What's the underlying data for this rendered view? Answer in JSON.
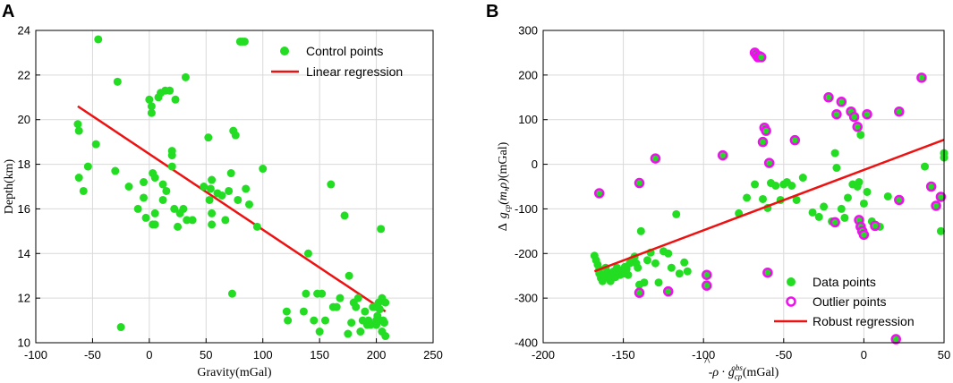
{
  "figure": {
    "panel_a_letter": "A",
    "panel_b_letter": "B"
  },
  "colors": {
    "data_point": "#22dd22",
    "outlier_ring": "#ee11ee",
    "regression_line": "#ee1111",
    "axis": "#000000"
  },
  "chart_data": [
    {
      "type": "scatter",
      "panel": "A",
      "title": "",
      "xlabel": "Gravity(mGal)",
      "ylabel": "Depth(km)",
      "xlim": [
        -100,
        250
      ],
      "ylim": [
        10,
        24
      ],
      "xticks": [
        -100,
        -50,
        0,
        50,
        100,
        150,
        200,
        250
      ],
      "yticks": [
        10,
        12,
        14,
        16,
        18,
        20,
        22,
        24
      ],
      "legend": {
        "position": "top-right",
        "entries": [
          "Control points",
          "Linear regression"
        ]
      },
      "series": [
        {
          "name": "Control points",
          "kind": "points",
          "points": [
            [
              -63,
              19.8
            ],
            [
              -62,
              19.5
            ],
            [
              -62,
              17.4
            ],
            [
              -58,
              16.8
            ],
            [
              -54,
              17.9
            ],
            [
              -47,
              18.9
            ],
            [
              -45,
              23.6
            ],
            [
              -30,
              17.7
            ],
            [
              -28,
              21.7
            ],
            [
              -25,
              10.7
            ],
            [
              -18,
              17.0
            ],
            [
              -10,
              16.0
            ],
            [
              -5,
              16.5
            ],
            [
              -5,
              17.2
            ],
            [
              -3,
              15.6
            ],
            [
              0,
              20.9
            ],
            [
              2,
              20.3
            ],
            [
              2,
              20.6
            ],
            [
              3,
              17.6
            ],
            [
              3,
              15.3
            ],
            [
              5,
              15.3
            ],
            [
              5,
              17.4
            ],
            [
              5,
              15.8
            ],
            [
              8,
              21.0
            ],
            [
              10,
              21.2
            ],
            [
              12,
              16.4
            ],
            [
              12,
              17.1
            ],
            [
              14,
              21.3
            ],
            [
              15,
              16.8
            ],
            [
              18,
              21.3
            ],
            [
              20,
              18.4
            ],
            [
              20,
              18.6
            ],
            [
              20,
              17.9
            ],
            [
              22,
              16.0
            ],
            [
              23,
              20.9
            ],
            [
              25,
              15.2
            ],
            [
              27,
              15.8
            ],
            [
              30,
              16.0
            ],
            [
              32,
              21.9
            ],
            [
              33,
              15.5
            ],
            [
              38,
              15.5
            ],
            [
              48,
              17.0
            ],
            [
              52,
              19.2
            ],
            [
              53,
              16.4
            ],
            [
              54,
              16.9
            ],
            [
              55,
              17.3
            ],
            [
              55,
              15.8
            ],
            [
              55,
              15.3
            ],
            [
              60,
              16.7
            ],
            [
              64,
              16.6
            ],
            [
              67,
              15.5
            ],
            [
              70,
              16.8
            ],
            [
              72,
              17.6
            ],
            [
              73,
              12.2
            ],
            [
              74,
              19.5
            ],
            [
              76,
              19.3
            ],
            [
              78,
              16.4
            ],
            [
              80,
              23.5
            ],
            [
              82,
              23.5
            ],
            [
              84,
              23.5
            ],
            [
              85,
              16.9
            ],
            [
              88,
              16.2
            ],
            [
              95,
              15.2
            ],
            [
              100,
              17.8
            ],
            [
              121,
              11.4
            ],
            [
              122,
              11.0
            ],
            [
              136,
              11.4
            ],
            [
              138,
              12.2
            ],
            [
              140,
              14.0
            ],
            [
              145,
              11.0
            ],
            [
              148,
              12.2
            ],
            [
              150,
              10.5
            ],
            [
              152,
              12.2
            ],
            [
              155,
              11.0
            ],
            [
              160,
              17.1
            ],
            [
              162,
              11.6
            ],
            [
              165,
              11.6
            ],
            [
              168,
              12.0
            ],
            [
              172,
              15.7
            ],
            [
              175,
              10.4
            ],
            [
              176,
              13.0
            ],
            [
              178,
              10.9
            ],
            [
              180,
              11.8
            ],
            [
              182,
              11.6
            ],
            [
              184,
              12.0
            ],
            [
              186,
              10.5
            ],
            [
              188,
              11.0
            ],
            [
              190,
              11.4
            ],
            [
              192,
              10.8
            ],
            [
              193,
              11.0
            ],
            [
              195,
              10.8
            ],
            [
              197,
              11.6
            ],
            [
              198,
              11.6
            ],
            [
              200,
              11.0
            ],
            [
              200,
              10.8
            ],
            [
              201,
              11.2
            ],
            [
              202,
              11.8
            ],
            [
              203,
              11.0
            ],
            [
              203,
              11.5
            ],
            [
              204,
              15.1
            ],
            [
              205,
              12.0
            ],
            [
              205,
              10.5
            ],
            [
              206,
              11.0
            ],
            [
              207,
              10.9
            ],
            [
              208,
              10.3
            ],
            [
              208,
              11.8
            ]
          ]
        },
        {
          "name": "Linear regression",
          "kind": "line",
          "points": [
            [
              -63,
              20.6
            ],
            [
              208,
              11.4
            ]
          ]
        }
      ]
    },
    {
      "type": "scatter",
      "panel": "B",
      "title": "",
      "xlabel_prefix": "-",
      "xlabel_rho": "ρ",
      "xlabel_hat": "^",
      "xlabel_dot": "·",
      "xlabel_g": "g",
      "xlabel_sub": "cp",
      "xlabel_sup": "obs",
      "xlabel_unit": "(mGal)",
      "ylabel_delta": "Δ",
      "ylabel_g": "g",
      "ylabel_sub": "cp",
      "ylabel_args": "(m,ρ)",
      "ylabel_unit": "(mGal)",
      "xlim": [
        -200,
        50
      ],
      "ylim": [
        -400,
        300
      ],
      "xticks": [
        -200,
        -150,
        -100,
        -50,
        0,
        50
      ],
      "yticks": [
        -400,
        -300,
        -200,
        -100,
        0,
        100,
        200,
        300
      ],
      "legend": {
        "position": "bottom-right",
        "entries": [
          "Data points",
          "Outlier points",
          "Robust regression"
        ]
      },
      "series": [
        {
          "name": "Data points",
          "kind": "points",
          "points": [
            [
              -168,
              -205
            ],
            [
              -167,
              -215
            ],
            [
              -166,
              -225
            ],
            [
              -165,
              -235
            ],
            [
              -165,
              -245
            ],
            [
              -164,
              -255
            ],
            [
              -163,
              -262
            ],
            [
              -162,
              -248
            ],
            [
              -161,
              -232
            ],
            [
              -160,
              -242
            ],
            [
              -159,
              -255
            ],
            [
              -158,
              -262
            ],
            [
              -157,
              -250
            ],
            [
              -156,
              -240
            ],
            [
              -155,
              -253
            ],
            [
              -154,
              -232
            ],
            [
              -153,
              -242
            ],
            [
              -152,
              -248
            ],
            [
              -151,
              -238
            ],
            [
              -150,
              -245
            ],
            [
              -149,
              -230
            ],
            [
              -148,
              -235
            ],
            [
              -147,
              -248
            ],
            [
              -146,
              -222
            ],
            [
              -145,
              -215
            ],
            [
              -143,
              -207
            ],
            [
              -142,
              -222
            ],
            [
              -141,
              -232
            ],
            [
              -140,
              -270
            ],
            [
              -139,
              -150
            ],
            [
              -137,
              -265
            ],
            [
              -135,
              -215
            ],
            [
              -133,
              -198
            ],
            [
              -130,
              -222
            ],
            [
              -128,
              -265
            ],
            [
              -125,
              -195
            ],
            [
              -122,
              -200
            ],
            [
              -120,
              -232
            ],
            [
              -117,
              -112
            ],
            [
              -115,
              -245
            ],
            [
              -112,
              -220
            ],
            [
              -110,
              -240
            ],
            [
              -78,
              -110
            ],
            [
              -73,
              -75
            ],
            [
              -68,
              -45
            ],
            [
              -63,
              -78
            ],
            [
              -60,
              -98
            ],
            [
              -58,
              -42
            ],
            [
              -55,
              -48
            ],
            [
              -52,
              -80
            ],
            [
              -50,
              -45
            ],
            [
              -48,
              -40
            ],
            [
              -45,
              -48
            ],
            [
              -42,
              -80
            ],
            [
              -38,
              -30
            ],
            [
              -32,
              -108
            ],
            [
              -28,
              -118
            ],
            [
              -25,
              -95
            ],
            [
              -20,
              -128
            ],
            [
              -18,
              25
            ],
            [
              -17,
              -8
            ],
            [
              -14,
              -100
            ],
            [
              -12,
              -120
            ],
            [
              -10,
              -75
            ],
            [
              -7,
              -45
            ],
            [
              -4,
              -50
            ],
            [
              -3,
              -40
            ],
            [
              -2,
              66
            ],
            [
              0,
              -88
            ],
            [
              2,
              -62
            ],
            [
              5,
              -128
            ],
            [
              10,
              -140
            ],
            [
              15,
              -72
            ],
            [
              38,
              -5
            ],
            [
              48,
              -150
            ],
            [
              50,
              25
            ],
            [
              50,
              15
            ]
          ]
        },
        {
          "name": "Outlier points",
          "kind": "rings",
          "points": [
            [
              -165,
              -65
            ],
            [
              -140,
              -42
            ],
            [
              -140,
              -288
            ],
            [
              -130,
              13
            ],
            [
              -122,
              -285
            ],
            [
              -98,
              -248
            ],
            [
              -98,
              -272
            ],
            [
              -88,
              20
            ],
            [
              -68,
              250
            ],
            [
              -67,
              245
            ],
            [
              -66,
              240
            ],
            [
              -65,
              242
            ],
            [
              -64,
              240
            ],
            [
              -63,
              50
            ],
            [
              -62,
              82
            ],
            [
              -61,
              75
            ],
            [
              -60,
              -243
            ],
            [
              -59,
              3
            ],
            [
              -43,
              54
            ],
            [
              -22,
              150
            ],
            [
              -18,
              -130
            ],
            [
              -17,
              112
            ],
            [
              -14,
              140
            ],
            [
              -8,
              118
            ],
            [
              -6,
              106
            ],
            [
              -4,
              84
            ],
            [
              -3,
              -125
            ],
            [
              -2,
              -140
            ],
            [
              -1,
              -150
            ],
            [
              0,
              -158
            ],
            [
              2,
              112
            ],
            [
              7,
              -138
            ],
            [
              20,
              -392
            ],
            [
              22,
              118
            ],
            [
              22,
              -80
            ],
            [
              36,
              194
            ],
            [
              42,
              -50
            ],
            [
              45,
              -93
            ],
            [
              48,
              -73
            ]
          ]
        },
        {
          "name": "Robust regression",
          "kind": "line",
          "points": [
            [
              -168,
              -240
            ],
            [
              50,
              55
            ]
          ]
        }
      ]
    }
  ]
}
